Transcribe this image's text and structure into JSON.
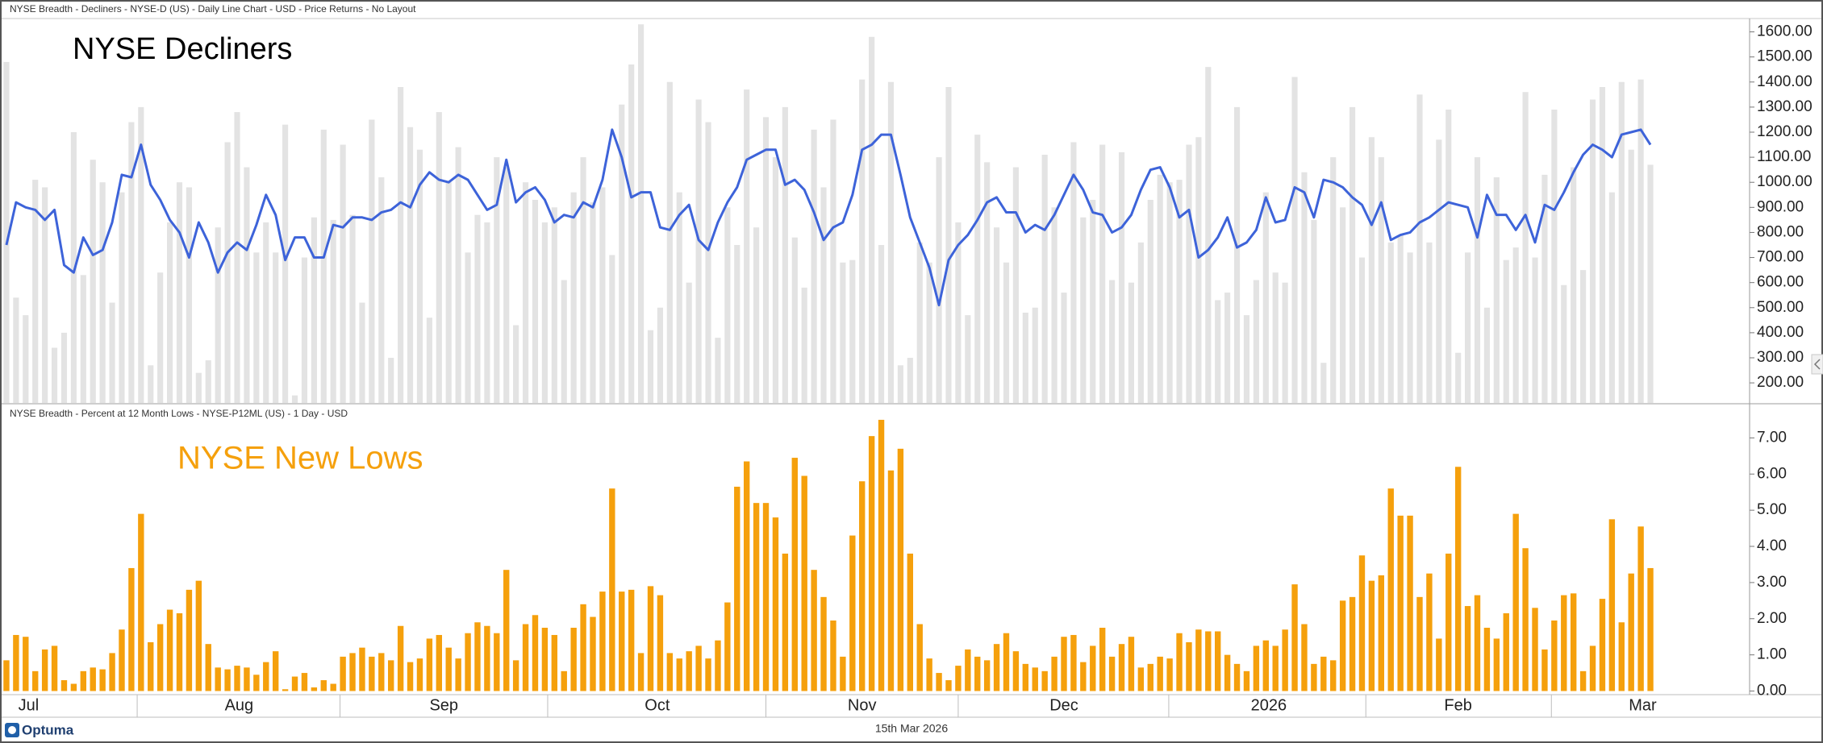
{
  "chart_data": [
    {
      "type": "bar_line",
      "subtitle": "NYSE Breadth - Decliners - NYSE-D (US) - Daily Line Chart - USD - Price Returns - No Layout",
      "title": "NYSE Decliners",
      "title_color": "#000000",
      "ylim": [
        120,
        1650
      ],
      "yticks": [
        {
          "value": 200,
          "label": "200.00"
        },
        {
          "value": 300,
          "label": "300.00"
        },
        {
          "value": 400,
          "label": "400.00"
        },
        {
          "value": 500,
          "label": "500.00"
        },
        {
          "value": 600,
          "label": "600.00"
        },
        {
          "value": 700,
          "label": "700.00"
        },
        {
          "value": 800,
          "label": "800.00"
        },
        {
          "value": 900,
          "label": "900.00"
        },
        {
          "value": 1000,
          "label": "1000.00"
        },
        {
          "value": 1100,
          "label": "1100.00"
        },
        {
          "value": 1200,
          "label": "1200.00"
        },
        {
          "value": 1300,
          "label": "1300.00"
        },
        {
          "value": 1400,
          "label": "1400.00"
        },
        {
          "value": 1500,
          "label": "1500.00"
        },
        {
          "value": 1600,
          "label": "1600.00"
        }
      ],
      "series": [
        {
          "type": "bar",
          "color": "#e3e3e3",
          "values": [
            1480,
            540,
            470,
            1010,
            980,
            340,
            400,
            1200,
            630,
            1090,
            1000,
            520,
            960,
            1240,
            1300,
            270,
            640,
            840,
            1000,
            980,
            240,
            290,
            820,
            1160,
            1280,
            1060,
            720,
            840,
            720,
            1230,
            150,
            700,
            860,
            1210,
            850,
            1150,
            870,
            520,
            1250,
            1020,
            300,
            1380,
            1220,
            1130,
            460,
            1280,
            1000,
            1140,
            720,
            870,
            840,
            1100,
            1060,
            430,
            1000,
            930,
            840,
            900,
            610,
            960,
            1100,
            920,
            980,
            710,
            1310,
            1470,
            1630,
            410,
            500,
            1400,
            960,
            600,
            1330,
            1240,
            380,
            900,
            750,
            1370,
            820,
            1260,
            1100,
            1300,
            780,
            580,
            1210,
            980,
            1250,
            680,
            690,
            1410,
            1580,
            750,
            1400,
            270,
            300,
            760,
            680,
            1100,
            1380,
            840,
            470,
            1190,
            1080,
            820,
            680,
            1060,
            480,
            500,
            1110,
            900,
            560,
            1160,
            860,
            930,
            1150,
            610,
            1120,
            600,
            760,
            930,
            1030,
            1000,
            1010,
            1150,
            1180,
            1460,
            530,
            560,
            1300,
            470,
            610,
            960,
            640,
            600,
            1420,
            1040,
            850,
            280,
            1100,
            900,
            1300,
            700,
            1180,
            1100,
            760,
            790,
            720,
            1350,
            760,
            1170,
            1290,
            320,
            720,
            1100,
            500,
            1020,
            690,
            740,
            1360,
            700,
            1030,
            1290,
            590,
            1060,
            650,
            1330,
            1380,
            960,
            1400,
            1130,
            1410,
            1070
          ]
        },
        {
          "type": "line",
          "color": "#3d63d9",
          "values": [
            750,
            920,
            900,
            890,
            850,
            890,
            670,
            640,
            780,
            710,
            730,
            840,
            1030,
            1020,
            1150,
            990,
            930,
            850,
            800,
            700,
            840,
            760,
            640,
            720,
            760,
            730,
            830,
            950,
            870,
            690,
            780,
            780,
            700,
            700,
            830,
            820,
            860,
            860,
            850,
            880,
            890,
            920,
            900,
            990,
            1040,
            1010,
            1000,
            1030,
            1010,
            950,
            890,
            910,
            1090,
            920,
            960,
            980,
            930,
            840,
            870,
            860,
            920,
            900,
            1010,
            1210,
            1100,
            940,
            960,
            960,
            820,
            810,
            870,
            910,
            770,
            730,
            840,
            920,
            980,
            1090,
            1110,
            1130,
            1130,
            990,
            1010,
            970,
            880,
            770,
            820,
            840,
            950,
            1130,
            1150,
            1190,
            1190,
            1030,
            860,
            760,
            660,
            510,
            690,
            750,
            790,
            850,
            920,
            940,
            880,
            880,
            800,
            830,
            810,
            870,
            950,
            1030,
            970,
            880,
            870,
            800,
            820,
            870,
            970,
            1050,
            1060,
            980,
            860,
            890,
            700,
            730,
            780,
            860,
            740,
            760,
            810,
            940,
            840,
            850,
            980,
            960,
            860,
            1010,
            1000,
            980,
            940,
            910,
            830,
            920,
            770,
            790,
            800,
            840,
            860,
            890,
            920,
            910,
            900,
            780,
            950,
            870,
            870,
            810,
            870,
            760,
            910,
            890,
            960,
            1040,
            1110,
            1150,
            1130,
            1100,
            1190,
            1200,
            1210,
            1150
          ]
        }
      ]
    },
    {
      "type": "bar",
      "subtitle": "NYSE Breadth - Percent at 12 Month Lows - NYSE-P12ML (US) - 1 Day - USD",
      "title": "NYSE New Lows",
      "title_color": "#f5a00c",
      "color": "#f5a00c",
      "ylim": [
        -0.1,
        7.9
      ],
      "yticks": [
        {
          "value": 0,
          "label": "0.00"
        },
        {
          "value": 1,
          "label": "1.00"
        },
        {
          "value": 2,
          "label": "2.00"
        },
        {
          "value": 3,
          "label": "3.00"
        },
        {
          "value": 4,
          "label": "4.00"
        },
        {
          "value": 5,
          "label": "5.00"
        },
        {
          "value": 6,
          "label": "6.00"
        },
        {
          "value": 7,
          "label": "7.00"
        }
      ],
      "values": [
        0.85,
        1.55,
        1.5,
        0.55,
        1.15,
        1.25,
        0.3,
        0.2,
        0.55,
        0.65,
        0.6,
        1.05,
        1.7,
        3.4,
        4.9,
        1.35,
        1.85,
        2.25,
        2.15,
        2.8,
        3.05,
        1.3,
        0.65,
        0.6,
        0.7,
        0.65,
        0.45,
        0.8,
        1.1,
        0.05,
        0.4,
        0.5,
        0.1,
        0.3,
        0.2,
        0.95,
        1.05,
        1.2,
        0.95,
        1.05,
        0.85,
        1.8,
        0.8,
        0.9,
        1.45,
        1.55,
        1.2,
        0.9,
        1.6,
        1.9,
        1.8,
        1.6,
        3.35,
        0.85,
        1.85,
        2.1,
        1.75,
        1.55,
        0.55,
        1.75,
        2.4,
        2.05,
        2.75,
        5.6,
        2.75,
        2.8,
        1.05,
        2.9,
        2.65,
        1.05,
        0.9,
        1.1,
        1.25,
        0.9,
        1.4,
        2.45,
        5.65,
        6.35,
        5.2,
        5.2,
        4.8,
        3.8,
        6.45,
        5.95,
        3.35,
        2.6,
        1.95,
        0.95,
        4.3,
        5.8,
        7.05,
        7.5,
        6.1,
        6.7,
        3.8,
        1.85,
        0.9,
        0.5,
        0.3,
        0.7,
        1.15,
        0.95,
        0.85,
        1.3,
        1.6,
        1.1,
        0.75,
        0.65,
        0.55,
        0.95,
        1.5,
        1.55,
        0.8,
        1.25,
        1.75,
        0.95,
        1.3,
        1.5,
        0.65,
        0.75,
        0.95,
        0.9,
        1.6,
        1.35,
        1.7,
        1.65,
        1.65,
        1.0,
        0.75,
        0.55,
        1.25,
        1.4,
        1.25,
        1.7,
        2.95,
        1.85,
        0.75,
        0.95,
        0.85,
        2.5,
        2.6,
        3.75,
        3.05,
        3.2,
        5.6,
        4.85,
        4.85,
        2.6,
        3.25,
        1.45,
        3.8,
        6.2,
        2.35,
        2.65,
        1.75,
        1.45,
        2.15,
        4.9,
        3.95,
        2.3,
        1.15,
        1.95,
        2.65,
        2.7,
        0.55,
        1.25,
        2.55,
        4.75,
        1.9,
        3.25,
        4.55,
        3.4
      ],
      "xticks": [
        {
          "value": 2.3,
          "label": "Jul"
        },
        {
          "value": 24.2,
          "label": "Aug"
        },
        {
          "value": 45.5,
          "label": "Sep"
        },
        {
          "value": 67.7,
          "label": "Oct"
        },
        {
          "value": 89,
          "label": "Nov"
        },
        {
          "value": 110,
          "label": "Dec"
        },
        {
          "value": 131.3,
          "label": "2026"
        },
        {
          "value": 151,
          "label": "Feb"
        },
        {
          "value": 170.2,
          "label": "Mar"
        }
      ],
      "month_boundaries": [
        13.6,
        34.7,
        56.3,
        79,
        99,
        120.9,
        141.4,
        160.7
      ]
    }
  ],
  "footer": {
    "logo": "Optuma",
    "date": "15th Mar 2026"
  }
}
